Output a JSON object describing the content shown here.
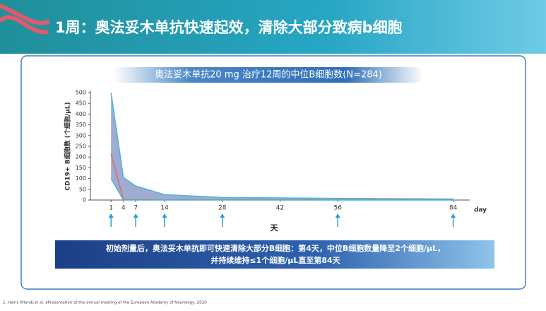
{
  "header": {
    "title": "1周：奥法妥木单抗快速起效，清除大部分致病b细胞"
  },
  "chart_data": {
    "type": "range_line",
    "title": "奥法妥木单抗20 mg 治疗12周的中位B细胞数(N=284)",
    "y_label": "CD19+ B细胞数 (个细胞/μL)",
    "x_label": "天",
    "x_unit": "day",
    "x": [
      1,
      4,
      7,
      14,
      28,
      56,
      84
    ],
    "series": [
      {
        "color": "#4fb4d8",
        "values": [
          500,
          105,
          65,
          25,
          12,
          8,
          5
        ]
      },
      {
        "color": "#e06a6a",
        "values": [
          215,
          2,
          2,
          1,
          1,
          1,
          1
        ]
      },
      {
        "color": "#4fb4d8",
        "values": [
          100,
          0,
          0,
          0,
          0,
          0,
          0
        ]
      }
    ],
    "band_color": "#8d9ec9",
    "arrow_days": [
      1,
      7,
      14,
      28,
      56,
      84
    ],
    "xlim": [
      -4,
      88
    ],
    "xticks": [
      1,
      4,
      7,
      14,
      28,
      42,
      56,
      84
    ],
    "ylim": [
      0,
      500
    ],
    "yticks": [
      0,
      50,
      100,
      150,
      200,
      250,
      300,
      350,
      400,
      450,
      500
    ]
  },
  "banner": {
    "lines": [
      "初始剂量后，奥法妥木单抗即可快速清除大部分B细胞：第4天，中位B细胞数量降至2个细胞/μL，",
      "并持续维持≤1个细胞/μL直至第84天"
    ]
  },
  "footnote": "1.  Heinz Wiendl,et al. ePresentation at the annual meeting of the European Academy of Neurology, 2020"
}
